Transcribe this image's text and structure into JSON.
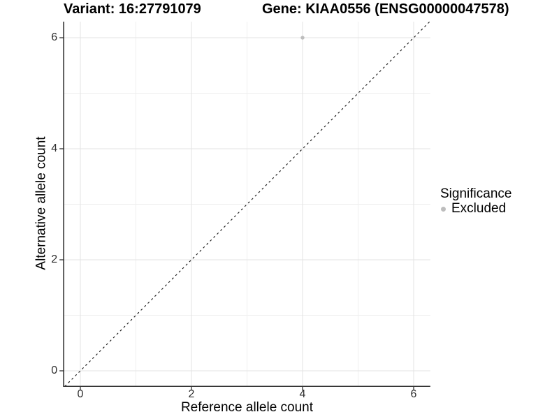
{
  "chart_data": {
    "type": "scatter",
    "title_left": "Variant: 16:27791079",
    "title_right": "Gene: KIAA0556 (ENSG00000047578)",
    "xlabel": "Reference allele count",
    "ylabel": "Alternative allele count",
    "xlim": [
      -0.3,
      6.3
    ],
    "ylim": [
      -0.28,
      6.29
    ],
    "x_major_ticks": [
      0,
      2,
      4,
      6
    ],
    "x_minor_ticks": [
      1,
      3,
      5
    ],
    "y_major_ticks": [
      0,
      2,
      4,
      6
    ],
    "y_minor_ticks": [
      1,
      3,
      5
    ],
    "grid": "major+minor",
    "points": [
      {
        "x": 4,
        "y": 6,
        "significance": "Excluded"
      }
    ],
    "identity_line": {
      "slope": 1,
      "intercept": 0,
      "style": "dashed"
    },
    "legend": {
      "title": "Significance",
      "position": "right",
      "entries": [
        {
          "label": "Excluded",
          "marker": "circle",
          "color": "#bdbdbd"
        }
      ]
    },
    "colors": {
      "point": "#bdbdbd",
      "grid_major": "#e3e3e3",
      "grid_minor": "#efefef",
      "axis": "#333333",
      "tick": "#333333",
      "identity_line": "#111111",
      "background": "#ffffff"
    }
  }
}
